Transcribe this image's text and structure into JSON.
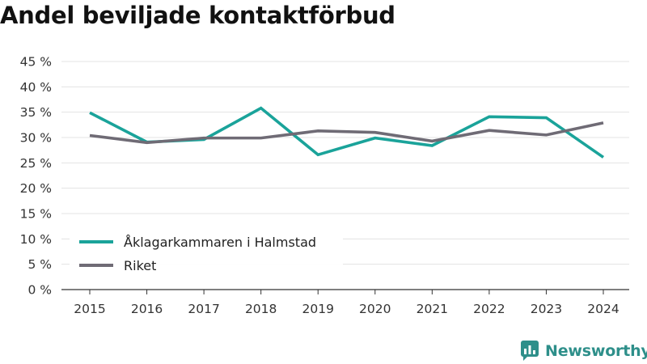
{
  "title": "Andel beviljade kontaktförbud",
  "brand": {
    "name": "Newsworthy",
    "icon": "newsworthy-logo-icon",
    "color": "#2e8f8a"
  },
  "chart_data": {
    "type": "line",
    "title": "Andel beviljade kontaktförbud",
    "x": [
      "2015",
      "2016",
      "2017",
      "2018",
      "2019",
      "2020",
      "2021",
      "2022",
      "2023",
      "2024"
    ],
    "yticks": [
      "0 %",
      "5 %",
      "10 %",
      "15 %",
      "20 %",
      "25 %",
      "30 %",
      "35 %",
      "40 %",
      "45 %"
    ],
    "ylim": [
      0,
      45
    ],
    "grid": true,
    "legend_position": "bottom-left",
    "series": [
      {
        "name": "Åklagarkammaren i Halmstad",
        "color": "#1aa39a",
        "values": [
          34.9,
          29.1,
          29.6,
          35.8,
          26.6,
          29.9,
          28.4,
          34.1,
          33.9,
          26.1
        ]
      },
      {
        "name": "Riket",
        "color": "#6f6b75",
        "values": [
          30.4,
          29.0,
          29.9,
          29.9,
          31.3,
          31.0,
          29.3,
          31.4,
          30.5,
          32.9
        ]
      }
    ]
  }
}
